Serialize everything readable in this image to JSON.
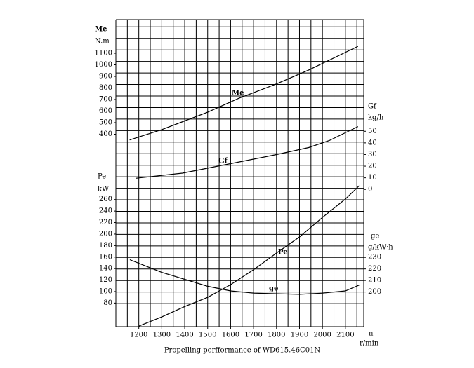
{
  "chart_data": {
    "type": "line",
    "title": "Propelling perfformance of WD615.46C01N",
    "xlabel": "n",
    "xunit": "r/min",
    "xlim": [
      1100,
      2180
    ],
    "xticks": [
      1200,
      1300,
      1400,
      1500,
      1600,
      1700,
      1800,
      1900,
      2000,
      2100
    ],
    "ylabel": "Me",
    "yunit": "N.m",
    "ylim": [
      -1264,
      1391
    ],
    "yticks": [
      400,
      500,
      600,
      700,
      800,
      900,
      1000,
      1100
    ],
    "y2label": "Gf",
    "y2unit": "kg/h",
    "y2lim": [
      -118,
      146
    ],
    "y2ticks": [
      0,
      10,
      20,
      30,
      40,
      50
    ],
    "y3label": "Pe",
    "y3unit": "kW",
    "y3lim": [
      39,
      573
    ],
    "y3ticks": [
      80,
      100,
      120,
      140,
      160,
      180,
      200,
      220,
      240,
      260
    ],
    "y4label": "ge",
    "y4unit": "g/kW·h",
    "y4lim": [
      170,
      436
    ],
    "y4ticks": [
      200,
      210,
      220,
      230
    ],
    "series": [
      {
        "name": "Me",
        "axis": "y",
        "color": "#000000",
        "x": [
          1160,
          1300,
          1500,
          1635,
          1800,
          1940,
          2155
        ],
        "values": [
          350,
          440,
          590,
          710,
          835,
          955,
          1160
        ]
      },
      {
        "name": "Gf",
        "axis": "y2",
        "color": "#000000",
        "x": [
          1186,
          1390,
          1545,
          1800,
          1940,
          2030,
          2155
        ],
        "values": [
          9.6,
          14,
          20,
          30,
          36,
          42,
          54
        ]
      },
      {
        "name": "Pe",
        "axis": "y3",
        "color": "#000000",
        "x": [
          1200,
          1300,
          1400,
          1500,
          1600,
          1700,
          1800,
          1900,
          2000,
          2100,
          2160
        ],
        "values": [
          40,
          56,
          74,
          90,
          112,
          138,
          167,
          195,
          229,
          261,
          284
        ]
      },
      {
        "name": "ge",
        "axis": "y4",
        "color": "#000000",
        "x": [
          1161,
          1300,
          1400,
          1500,
          1600,
          1700,
          1900,
          2000,
          2100,
          2160
        ],
        "values": [
          228,
          217,
          211,
          205,
          201,
          199,
          198,
          199,
          201,
          206
        ]
      }
    ]
  }
}
